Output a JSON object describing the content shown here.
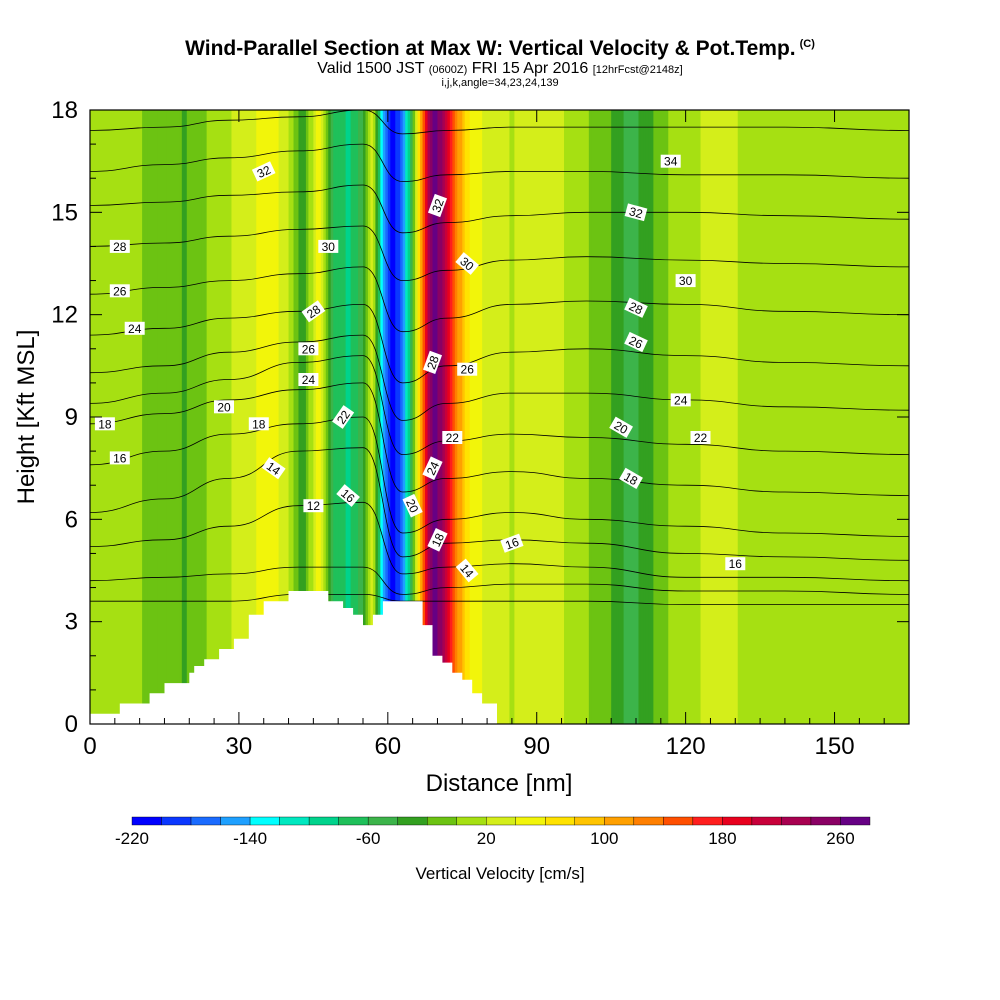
{
  "title": {
    "main": "Wind-Parallel Section at Max W: Vertical Velocity & Pot.Temp.",
    "main_units": "(C)",
    "line2_a": "Valid 1500 JST",
    "line2_b": "(0600Z)",
    "line2_c": "FRI 15 Apr 2016",
    "line2_d": "[12hrFcst@2148z]",
    "line3": "i,j,k,angle=34,23,24,139"
  },
  "chart_data": {
    "type": "heatmap",
    "xlabel": "Distance [nm]",
    "ylabel": "Height [Kft MSL]",
    "xlim": [
      0,
      165
    ],
    "ylim": [
      0,
      18
    ],
    "xticks": [
      0,
      30,
      60,
      90,
      120,
      150
    ],
    "yticks": [
      0,
      3,
      6,
      9,
      12,
      15,
      18
    ],
    "colorbar": {
      "title": "Vertical Velocity [cm/s]",
      "min": -220,
      "max": 280,
      "step": 20,
      "tick_labels": [
        -220,
        -140,
        -60,
        20,
        100,
        180,
        260
      ],
      "colors": [
        "#0000ff",
        "#0a37ff",
        "#1a6bff",
        "#1ea0ff",
        "#00ffff",
        "#00e8c0",
        "#00d38c",
        "#1fc05a",
        "#3cb44a",
        "#33a020",
        "#6cc312",
        "#a6e012",
        "#d4ee1a",
        "#f2f50a",
        "#ffe200",
        "#ffc400",
        "#ffa000",
        "#ff7f00",
        "#ff4f00",
        "#ff1e1e",
        "#e8001e",
        "#c8003a",
        "#a80050",
        "#8a0064",
        "#660084"
      ]
    },
    "shading": {
      "columns": [
        {
          "x": 0,
          "v": 12
        },
        {
          "x": 12,
          "v": -2
        },
        {
          "x": 19,
          "v": -22
        },
        {
          "x": 26,
          "v": 14
        },
        {
          "x": 32,
          "v": 28
        },
        {
          "x": 36,
          "v": 62
        },
        {
          "x": 40,
          "v": 18
        },
        {
          "x": 43,
          "v": -40
        },
        {
          "x": 46,
          "v": 58
        },
        {
          "x": 49,
          "v": -60
        },
        {
          "x": 52,
          "v": -85
        },
        {
          "x": 55,
          "v": -50
        },
        {
          "x": 57,
          "v": 42
        },
        {
          "x": 59,
          "v": -150
        },
        {
          "x": 61,
          "v": -220
        },
        {
          "x": 63,
          "v": -160
        },
        {
          "x": 65,
          "v": -40
        },
        {
          "x": 67,
          "v": 140
        },
        {
          "x": 69,
          "v": 275
        },
        {
          "x": 71,
          "v": 240
        },
        {
          "x": 73,
          "v": 150
        },
        {
          "x": 76,
          "v": 65
        },
        {
          "x": 80,
          "v": 32
        },
        {
          "x": 85,
          "v": 18
        },
        {
          "x": 91,
          "v": 36
        },
        {
          "x": 98,
          "v": 10
        },
        {
          "x": 104,
          "v": -12
        },
        {
          "x": 109,
          "v": -52
        },
        {
          "x": 113,
          "v": -22
        },
        {
          "x": 119,
          "v": 14
        },
        {
          "x": 127,
          "v": 26
        },
        {
          "x": 135,
          "v": 12
        },
        {
          "x": 143,
          "v": 6
        },
        {
          "x": 151,
          "v": 0
        },
        {
          "x": 160,
          "v": 10
        },
        {
          "x": 165,
          "v": 8
        }
      ]
    },
    "isentropes": {
      "units": "C",
      "levels": [
        {
          "theta": 8,
          "heights": [
            3.6,
            3.6,
            3.6,
            3.8,
            3.8,
            3.6,
            3.6,
            3.6,
            3.6,
            3.5,
            3.5,
            3.5
          ]
        },
        {
          "theta": 10,
          "heights": [
            4.2,
            4.3,
            4.4,
            4.6,
            4.6,
            3.8,
            4.0,
            4.1,
            4.1,
            3.9,
            3.9,
            3.8
          ]
        },
        {
          "theta": 12,
          "heights": [
            5.2,
            5.4,
            5.8,
            6.4,
            6.5,
            4.4,
            4.6,
            4.7,
            4.6,
            4.3,
            4.3,
            4.2
          ]
        },
        {
          "theta": 14,
          "heights": [
            6.2,
            6.6,
            7.2,
            8.0,
            8.1,
            4.9,
            5.3,
            5.4,
            5.3,
            5.0,
            4.9,
            4.8
          ]
        },
        {
          "theta": 16,
          "heights": [
            7.6,
            8.0,
            8.5,
            8.8,
            9.0,
            5.6,
            6.0,
            6.2,
            6.0,
            5.8,
            5.6,
            5.5
          ]
        },
        {
          "theta": 18,
          "heights": [
            8.8,
            9.1,
            9.5,
            9.8,
            10.0,
            6.8,
            7.2,
            7.4,
            7.2,
            7.0,
            6.8,
            6.7
          ]
        },
        {
          "theta": 20,
          "heights": [
            9.4,
            9.7,
            10.1,
            10.6,
            10.8,
            7.9,
            8.3,
            8.5,
            8.4,
            8.2,
            8.0,
            7.9
          ]
        },
        {
          "theta": 22,
          "heights": [
            10.3,
            10.5,
            10.9,
            11.2,
            11.4,
            8.9,
            9.4,
            9.7,
            9.7,
            9.5,
            9.3,
            9.2
          ]
        },
        {
          "theta": 24,
          "heights": [
            11.4,
            11.6,
            11.9,
            12.1,
            12.3,
            10.0,
            10.5,
            10.9,
            11.0,
            10.8,
            10.6,
            10.5
          ]
        },
        {
          "theta": 26,
          "heights": [
            12.6,
            12.8,
            13.0,
            13.2,
            13.4,
            11.5,
            11.9,
            12.3,
            12.4,
            12.3,
            12.1,
            12.0
          ]
        },
        {
          "theta": 28,
          "heights": [
            14.0,
            14.1,
            14.3,
            14.5,
            14.6,
            13.0,
            13.3,
            13.6,
            13.7,
            13.6,
            13.5,
            13.4
          ]
        },
        {
          "theta": 30,
          "heights": [
            15.2,
            15.3,
            15.5,
            15.6,
            15.8,
            14.4,
            14.7,
            14.9,
            15.0,
            15.0,
            14.9,
            14.8
          ]
        },
        {
          "theta": 32,
          "heights": [
            16.2,
            16.4,
            16.6,
            16.8,
            17.0,
            15.9,
            16.1,
            16.2,
            16.2,
            16.1,
            16.1,
            16.0
          ]
        },
        {
          "theta": 34,
          "heights": [
            17.4,
            17.5,
            17.7,
            17.8,
            18.0,
            17.3,
            17.4,
            17.5,
            17.5,
            17.5,
            17.5,
            17.4
          ]
        }
      ],
      "x_nodes": [
        0,
        15,
        28,
        42,
        55,
        63,
        72,
        85,
        100,
        120,
        140,
        165
      ]
    },
    "contour_labels": [
      {
        "text": "32",
        "x": 35,
        "y": 16.2,
        "rot": -25
      },
      {
        "text": "34",
        "x": 117,
        "y": 16.5,
        "rot": 0
      },
      {
        "text": "28",
        "x": 6,
        "y": 14.0,
        "rot": 0
      },
      {
        "text": "30",
        "x": 48,
        "y": 14.0,
        "rot": 0
      },
      {
        "text": "32",
        "x": 70,
        "y": 15.2,
        "rot": -70
      },
      {
        "text": "32",
        "x": 110,
        "y": 15.0,
        "rot": 15
      },
      {
        "text": "30",
        "x": 76,
        "y": 13.5,
        "rot": 40
      },
      {
        "text": "30",
        "x": 120,
        "y": 13.0,
        "rot": 0
      },
      {
        "text": "26",
        "x": 6,
        "y": 12.7,
        "rot": 0
      },
      {
        "text": "28",
        "x": 45,
        "y": 12.1,
        "rot": -35
      },
      {
        "text": "28",
        "x": 110,
        "y": 12.2,
        "rot": 25
      },
      {
        "text": "24",
        "x": 9,
        "y": 11.6,
        "rot": 0
      },
      {
        "text": "26",
        "x": 44,
        "y": 11.0,
        "rot": 0
      },
      {
        "text": "26",
        "x": 110,
        "y": 11.2,
        "rot": 25
      },
      {
        "text": "28",
        "x": 69,
        "y": 10.6,
        "rot": -70
      },
      {
        "text": "26",
        "x": 76,
        "y": 10.4,
        "rot": 0
      },
      {
        "text": "24",
        "x": 44,
        "y": 10.1,
        "rot": 0
      },
      {
        "text": "24",
        "x": 119,
        "y": 9.5,
        "rot": 0
      },
      {
        "text": "20",
        "x": 27,
        "y": 9.3,
        "rot": 0
      },
      {
        "text": "22",
        "x": 51,
        "y": 9.0,
        "rot": -55
      },
      {
        "text": "18",
        "x": 3,
        "y": 8.8,
        "rot": 0
      },
      {
        "text": "18",
        "x": 34,
        "y": 8.8,
        "rot": 0
      },
      {
        "text": "20",
        "x": 107,
        "y": 8.7,
        "rot": 30
      },
      {
        "text": "22",
        "x": 73,
        "y": 8.4,
        "rot": 0
      },
      {
        "text": "22",
        "x": 123,
        "y": 8.4,
        "rot": 0
      },
      {
        "text": "16",
        "x": 6,
        "y": 7.8,
        "rot": 0
      },
      {
        "text": "14",
        "x": 37,
        "y": 7.5,
        "rot": 35
      },
      {
        "text": "24",
        "x": 69,
        "y": 7.5,
        "rot": -65
      },
      {
        "text": "18",
        "x": 109,
        "y": 7.2,
        "rot": 30
      },
      {
        "text": "16",
        "x": 52,
        "y": 6.7,
        "rot": 40
      },
      {
        "text": "12",
        "x": 45,
        "y": 6.4,
        "rot": 0
      },
      {
        "text": "20",
        "x": 65,
        "y": 6.4,
        "rot": 65
      },
      {
        "text": "18",
        "x": 70,
        "y": 5.4,
        "rot": -65
      },
      {
        "text": "16",
        "x": 85,
        "y": 5.3,
        "rot": -20
      },
      {
        "text": "14",
        "x": 76,
        "y": 4.5,
        "rot": 50
      },
      {
        "text": "16",
        "x": 130,
        "y": 4.7,
        "rot": 0
      }
    ],
    "terrain": {
      "steps": [
        [
          0,
          0.3
        ],
        [
          6,
          0.6
        ],
        [
          12,
          0.9
        ],
        [
          15,
          1.2
        ],
        [
          20,
          1.5
        ],
        [
          21,
          1.7
        ],
        [
          23,
          1.9
        ],
        [
          26,
          2.2
        ],
        [
          29,
          2.5
        ],
        [
          32,
          3.2
        ],
        [
          35,
          3.6
        ],
        [
          40,
          3.9
        ],
        [
          45,
          3.9
        ],
        [
          48,
          3.6
        ],
        [
          51,
          3.4
        ],
        [
          53,
          3.2
        ],
        [
          55,
          2.9
        ],
        [
          57,
          3.2
        ],
        [
          59,
          3.6
        ],
        [
          62,
          3.6
        ],
        [
          65,
          3.6
        ],
        [
          67,
          2.9
        ],
        [
          69,
          2.0
        ],
        [
          71,
          1.8
        ],
        [
          73,
          1.5
        ],
        [
          75,
          1.3
        ],
        [
          77,
          0.9
        ],
        [
          79,
          0.6
        ],
        [
          82,
          0.3
        ],
        [
          82,
          0
        ]
      ]
    }
  }
}
